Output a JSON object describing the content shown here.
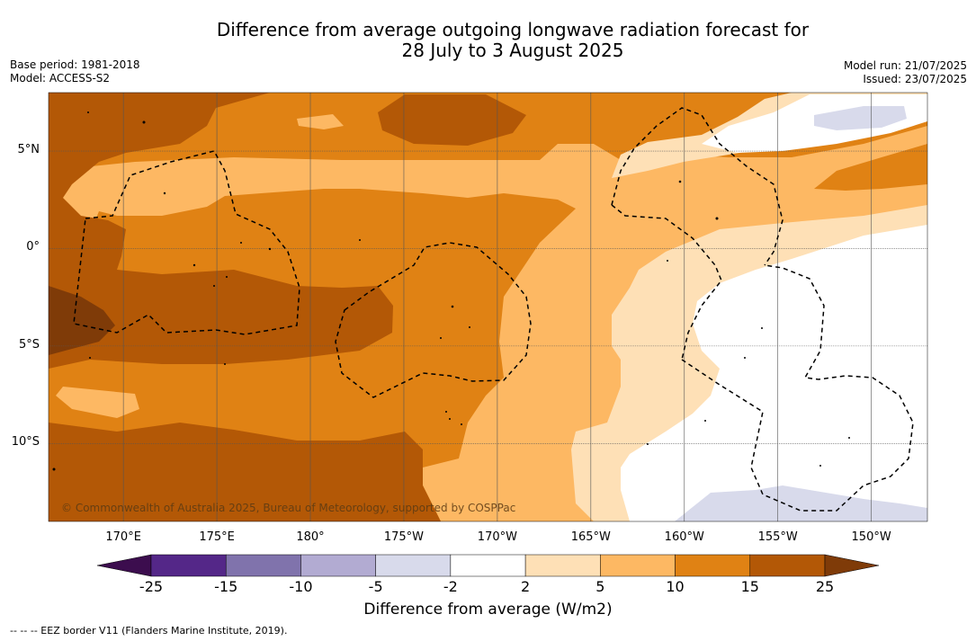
{
  "header": {
    "title_line1": "Difference from average outgoing longwave radiation forecast for",
    "title_line2": "28 July to 3 August 2025",
    "base_period": "Base period: 1981-2018",
    "model": "Model: ACCESS-S2",
    "model_run": "Model run: 21/07/2025",
    "issued": "Issued: 23/07/2025"
  },
  "map": {
    "region": "Tropical South Pacific",
    "lat_range": [
      -14,
      8
    ],
    "lon_range": [
      166,
      213
    ],
    "lat_ticks": [
      {
        "value": 5,
        "label": "5°N"
      },
      {
        "value": 0,
        "label": "0°"
      },
      {
        "value": -5,
        "label": "5°S"
      },
      {
        "value": -10,
        "label": "10°S"
      }
    ],
    "lon_ticks": [
      {
        "value": 170,
        "label": "170°E"
      },
      {
        "value": 175,
        "label": "175°E"
      },
      {
        "value": 180,
        "label": "180°"
      },
      {
        "value": 185,
        "label": "175°W"
      },
      {
        "value": 190,
        "label": "170°W"
      },
      {
        "value": 195,
        "label": "165°W"
      },
      {
        "value": 200,
        "label": "160°W"
      },
      {
        "value": 205,
        "label": "155°W"
      },
      {
        "value": 210,
        "label": "150°W"
      }
    ],
    "copyright": "© Commonwealth of Australia 2025, Bureau of Meteorology, supported by COSPPac"
  },
  "colorbar": {
    "title": "Difference from average (W/m2)",
    "labels": [
      "-25",
      "-15",
      "-10",
      "-5",
      "-2",
      "2",
      "5",
      "10",
      "15",
      "25"
    ],
    "colors": {
      "under": "#3c0d4e",
      "c1": "#542788",
      "c2": "#8073ac",
      "c3": "#b2abd2",
      "c4": "#d8daeb",
      "c5": "#ffffff",
      "c6": "#fee0b6",
      "c7": "#fdb863",
      "c8": "#e08214",
      "c9": "#b35806",
      "over": "#7f3b08"
    }
  },
  "footer": {
    "eez_note": "--  --  -- EEZ border V11 (Flanders Marine Institute, 2019)."
  }
}
